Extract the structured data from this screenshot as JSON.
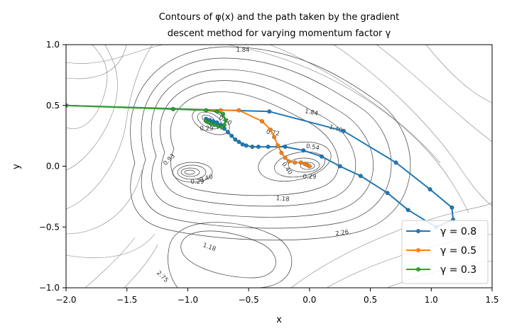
{
  "chart_data": {
    "type": "line",
    "title_lines": [
      "Contours of φ(x) and the path taken by the gradient",
      "descent method for varying momentum factor γ"
    ],
    "xlabel": "x",
    "ylabel": "y",
    "xlim": [
      -2.0,
      1.5
    ],
    "ylim": [
      -1.0,
      1.0
    ],
    "xticks": [
      "−2.0",
      "−1.5",
      "−1.0",
      "−0.5",
      "0.0",
      "0.5",
      "1.0",
      "1.5"
    ],
    "yticks": [
      "1.0",
      "0.5",
      "0.0",
      "−0.5",
      "−1.0"
    ],
    "legend_position": "lower right",
    "series": [
      {
        "name": "γ = 0.8",
        "color": "#1f77b4",
        "points": [
          [
            -2.0,
            0.5
          ],
          [
            -0.33,
            0.45
          ],
          [
            0.28,
            0.29
          ],
          [
            0.71,
            0.03
          ],
          [
            0.99,
            -0.19
          ],
          [
            1.17,
            -0.34
          ],
          [
            1.18,
            -0.44
          ],
          [
            1.04,
            -0.5
          ],
          [
            0.81,
            -0.36
          ],
          [
            0.64,
            -0.22
          ],
          [
            0.42,
            -0.08
          ],
          [
            0.25,
            0.0
          ],
          [
            0.1,
            0.08
          ],
          [
            -0.05,
            0.13
          ],
          [
            -0.2,
            0.16
          ],
          [
            -0.34,
            0.16
          ],
          [
            -0.42,
            0.16
          ],
          [
            -0.47,
            0.16
          ],
          [
            -0.52,
            0.17
          ],
          [
            -0.55,
            0.18
          ],
          [
            -0.58,
            0.2
          ],
          [
            -0.61,
            0.22
          ],
          [
            -0.64,
            0.25
          ],
          [
            -0.67,
            0.28
          ],
          [
            -0.7,
            0.31
          ],
          [
            -0.73,
            0.34
          ],
          [
            -0.76,
            0.36
          ],
          [
            -0.79,
            0.37
          ],
          [
            -0.82,
            0.38
          ],
          [
            -0.85,
            0.39
          ]
        ]
      },
      {
        "name": "γ = 0.5",
        "color": "#ff7f0e",
        "points": [
          [
            -2.0,
            0.5
          ],
          [
            -1.12,
            0.47
          ],
          [
            -0.73,
            0.46
          ],
          [
            -0.58,
            0.46
          ],
          [
            -0.39,
            0.37
          ],
          [
            -0.32,
            0.3
          ],
          [
            -0.29,
            0.24
          ],
          [
            -0.26,
            0.17
          ],
          [
            -0.23,
            0.11
          ],
          [
            -0.2,
            0.07
          ],
          [
            -0.17,
            0.04
          ],
          [
            -0.12,
            0.03
          ],
          [
            -0.07,
            0.03
          ],
          [
            -0.04,
            0.02
          ],
          [
            -0.02,
            0.01
          ],
          [
            0.0,
            0.0
          ]
        ]
      },
      {
        "name": "γ = 0.3",
        "color": "#2ca02c",
        "points": [
          [
            -2.0,
            0.5
          ],
          [
            -1.12,
            0.47
          ],
          [
            -0.85,
            0.46
          ],
          [
            -0.76,
            0.45
          ],
          [
            -0.71,
            0.43
          ],
          [
            -0.69,
            0.38
          ],
          [
            -0.7,
            0.34
          ],
          [
            -0.72,
            0.32
          ],
          [
            -0.75,
            0.33
          ],
          [
            -0.78,
            0.34
          ],
          [
            -0.81,
            0.35
          ],
          [
            -0.83,
            0.36
          ],
          [
            -0.85,
            0.37
          ]
        ]
      }
    ],
    "contour_labels": [
      "1.84",
      "1.84",
      "1.48",
      "0.72",
      "0.54",
      "0.40",
      "0.29",
      "0.93",
      "0.40",
      "0.29",
      "1.18",
      "2.26",
      "1.18",
      "2.75",
      "0.29",
      "0.40"
    ]
  }
}
